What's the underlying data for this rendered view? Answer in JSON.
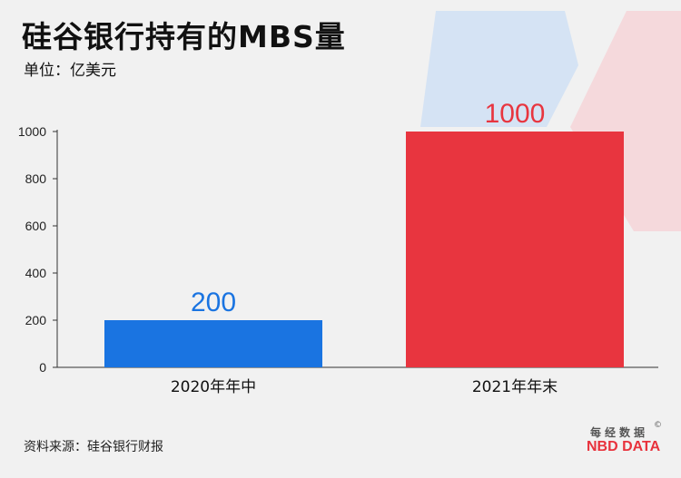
{
  "title": "硅谷银行持有的MBS量",
  "subtitle": "单位：亿美元",
  "source": "资料来源：硅谷银行财报",
  "logo": {
    "cn": "每经数据",
    "copyright": "©",
    "en": "NBD DATA"
  },
  "colors": {
    "background": "#f1f1f1",
    "bar_blue": "#1a74e1",
    "bar_red": "#e8353f",
    "label_blue": "#1a74e1",
    "label_red": "#e8353f",
    "deco_blue": "#d5e3f4",
    "deco_red": "#f5d9dc"
  },
  "chart_data": {
    "type": "bar",
    "title": "硅谷银行持有的MBS量",
    "xlabel": "",
    "ylabel": "",
    "categories": [
      "2020年年中",
      "2021年年末"
    ],
    "values": [
      200,
      1000
    ],
    "data_labels": [
      "200",
      "1000"
    ],
    "ylim": [
      0,
      1000
    ],
    "yticks": [
      0,
      200,
      400,
      600,
      800,
      1000
    ],
    "ytick_labels": [
      "0",
      "200",
      "400",
      "600",
      "800",
      "1000"
    ],
    "grid": false,
    "legend": "none"
  }
}
